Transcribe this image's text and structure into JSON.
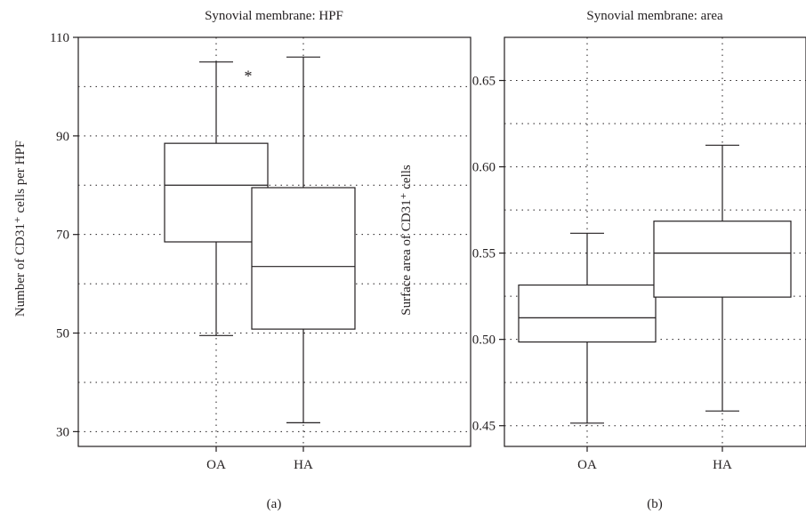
{
  "chart_data": [
    {
      "type": "box",
      "panel_label": "(a)",
      "title": "Synovial membrane: HPF",
      "ylabel": "Number of CD31⁺ cells per HPF",
      "categories": [
        "OA",
        "HA"
      ],
      "ylim": [
        27,
        110
      ],
      "yticks": [
        30,
        50,
        70,
        90,
        110
      ],
      "grid_y": [
        30,
        40,
        50,
        60,
        70,
        80,
        90,
        100,
        110
      ],
      "grid": true,
      "boxes": [
        {
          "category": "OA",
          "whisker_low": 49.5,
          "q1": 68.5,
          "median": 80,
          "q3": 88.5,
          "whisker_high": 105
        },
        {
          "category": "HA",
          "whisker_low": 31.8,
          "q1": 50.8,
          "median": 63.5,
          "q3": 79.5,
          "whisker_high": 106
        }
      ],
      "annotations": [
        {
          "text": "*",
          "category": "OA",
          "y": 102.5
        }
      ]
    },
    {
      "type": "box",
      "panel_label": "(b)",
      "title": "Synovial membrane: area",
      "ylabel": "Surface area of CD31⁺ cells",
      "categories": [
        "OA",
        "HA"
      ],
      "ylim": [
        0.438,
        0.675
      ],
      "yticks": [
        0.45,
        0.5,
        0.55,
        0.6,
        0.65
      ],
      "ytick_labels": [
        "0.45",
        "0.50",
        "0.55",
        "0.60",
        "0.65"
      ],
      "grid_y": [
        0.45,
        0.475,
        0.5,
        0.525,
        0.55,
        0.575,
        0.6,
        0.625,
        0.65
      ],
      "grid": true,
      "boxes": [
        {
          "category": "OA",
          "whisker_low": 0.4515,
          "q1": 0.4985,
          "median": 0.5125,
          "q3": 0.5315,
          "whisker_high": 0.5615
        },
        {
          "category": "HA",
          "whisker_low": 0.4585,
          "q1": 0.5245,
          "median": 0.55,
          "q3": 0.5685,
          "whisker_high": 0.6125
        }
      ],
      "annotations": []
    }
  ]
}
